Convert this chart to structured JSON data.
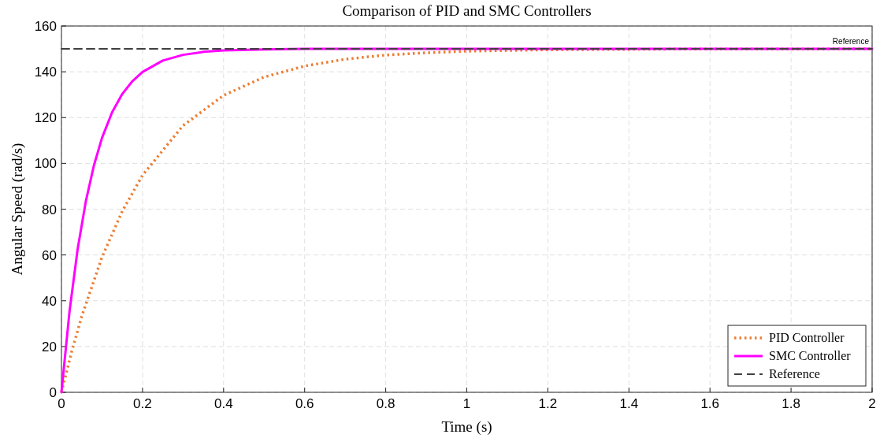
{
  "chart_data": {
    "type": "line",
    "title": "Comparison of PID and SMC Controllers",
    "xlabel": "Time (s)",
    "ylabel": "Angular Speed (rad/s)",
    "xlim": [
      0,
      2
    ],
    "xticks": [
      0,
      0.2,
      0.4,
      0.6,
      0.8,
      1,
      1.2,
      1.4,
      1.6,
      1.8,
      2
    ],
    "ylim": [
      0,
      160
    ],
    "yticks": [
      0,
      20,
      40,
      60,
      80,
      100,
      120,
      140,
      160
    ],
    "grid": true,
    "legend": "bottom right",
    "series": [
      {
        "name": "PID Controller",
        "color": "#ed7d31",
        "line_style": "dotted",
        "x": [
          0,
          0.025,
          0.05,
          0.1,
          0.15,
          0.2,
          0.3,
          0.4,
          0.5,
          0.6,
          0.7,
          0.8,
          0.9,
          1,
          1.2,
          1.5,
          2
        ],
        "values": [
          0,
          17.6,
          33.2,
          59,
          79.1,
          94.8,
          116.5,
          129.7,
          137.7,
          142.5,
          145.5,
          147.3,
          148.3,
          149,
          149.6,
          149.9,
          150
        ]
      },
      {
        "name": "SMC Controller",
        "color": "#ff00ff",
        "line_style": "solid",
        "x": [
          0,
          0.02,
          0.04,
          0.06,
          0.08,
          0.1,
          0.125,
          0.15,
          0.175,
          0.2,
          0.25,
          0.3,
          0.35,
          0.4,
          0.5,
          0.6,
          1,
          2
        ],
        "values": [
          0,
          35.5,
          62.6,
          83.3,
          99,
          111.1,
          122.3,
          130.3,
          135.9,
          139.9,
          144.9,
          147.4,
          148.7,
          149.3,
          149.8,
          150,
          150,
          150
        ]
      },
      {
        "name": "Reference",
        "color": "#404040",
        "line_style": "dashed",
        "x": [
          0,
          2
        ],
        "values": [
          150,
          150
        ]
      }
    ],
    "annotations": [
      {
        "text": "Reference",
        "x": 2,
        "y": 150
      }
    ]
  }
}
